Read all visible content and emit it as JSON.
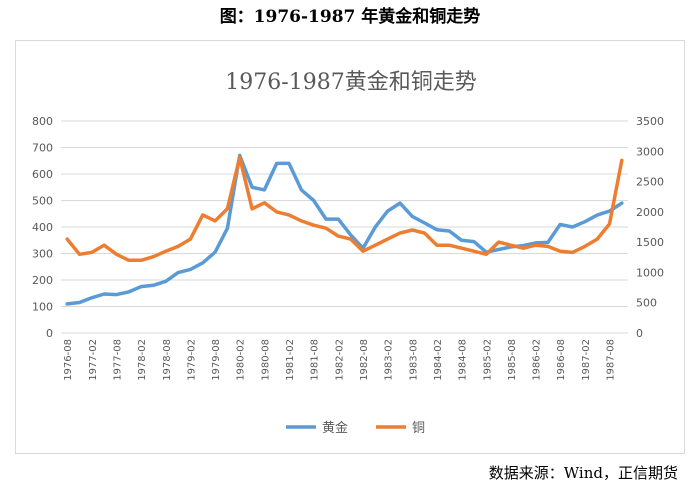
{
  "caption": "图：1976-1987 年黄金和铜走势",
  "source": "数据来源：Wind，正信期货",
  "chart_data": {
    "type": "line",
    "title": "1976-1987黄金和铜走势",
    "x": [
      "1976-08",
      "1976-11",
      "1977-02",
      "1977-05",
      "1977-08",
      "1977-11",
      "1978-02",
      "1978-05",
      "1978-08",
      "1978-11",
      "1979-02",
      "1979-05",
      "1979-08",
      "1979-11",
      "1980-02",
      "1980-05",
      "1980-08",
      "1980-11",
      "1981-02",
      "1981-05",
      "1981-08",
      "1981-11",
      "1982-02",
      "1982-05",
      "1982-08",
      "1982-11",
      "1983-02",
      "1983-05",
      "1983-08",
      "1983-11",
      "1984-02",
      "1984-05",
      "1984-08",
      "1984-11",
      "1985-02",
      "1985-05",
      "1985-08",
      "1985-11",
      "1986-02",
      "1986-05",
      "1986-08",
      "1986-11",
      "1987-02",
      "1987-05",
      "1987-08",
      "1987-11"
    ],
    "x_tick_labels": [
      "1976-08",
      "1977-02",
      "1977-08",
      "1978-02",
      "1978-08",
      "1979-02",
      "1979-08",
      "1980-02",
      "1980-08",
      "1981-02",
      "1981-08",
      "1982-02",
      "1982-08",
      "1983-02",
      "1983-08",
      "1984-02",
      "1984-08",
      "1985-02",
      "1985-08",
      "1986-02",
      "1986-08",
      "1987-02",
      "1987-08"
    ],
    "y_left": {
      "min": 0,
      "max": 800,
      "step": 100,
      "ticks": [
        "0",
        "100",
        "200",
        "300",
        "400",
        "500",
        "600",
        "700",
        "800"
      ]
    },
    "y_right": {
      "min": 0,
      "max": 3500,
      "step": 500,
      "ticks": [
        "0",
        "500",
        "1000",
        "1500",
        "2000",
        "2500",
        "3000",
        "3500"
      ]
    },
    "grid": true,
    "legend_position": "bottom",
    "series": [
      {
        "name": "黄金",
        "axis": "left",
        "color": "#5b9bd5",
        "values": [
          110,
          115,
          133,
          147,
          145,
          155,
          175,
          180,
          195,
          228,
          240,
          265,
          305,
          395,
          670,
          550,
          540,
          640,
          640,
          540,
          500,
          430,
          430,
          370,
          320,
          400,
          460,
          490,
          440,
          415,
          390,
          385,
          350,
          345,
          305,
          315,
          325,
          330,
          340,
          342,
          410,
          400,
          420,
          445,
          460,
          490
        ]
      },
      {
        "name": "铜",
        "axis": "right",
        "color": "#ed7d31",
        "values": [
          1550,
          1300,
          1330,
          1450,
          1300,
          1200,
          1200,
          1260,
          1350,
          1430,
          1550,
          1950,
          1850,
          2050,
          2900,
          2050,
          2150,
          2000,
          1950,
          1850,
          1780,
          1730,
          1600,
          1550,
          1350,
          1450,
          1550,
          1650,
          1700,
          1650,
          1450,
          1450,
          1400,
          1350,
          1300,
          1500,
          1450,
          1400,
          1450,
          1430,
          1350,
          1330,
          1430,
          1550,
          1800,
          2850
        ]
      }
    ]
  }
}
